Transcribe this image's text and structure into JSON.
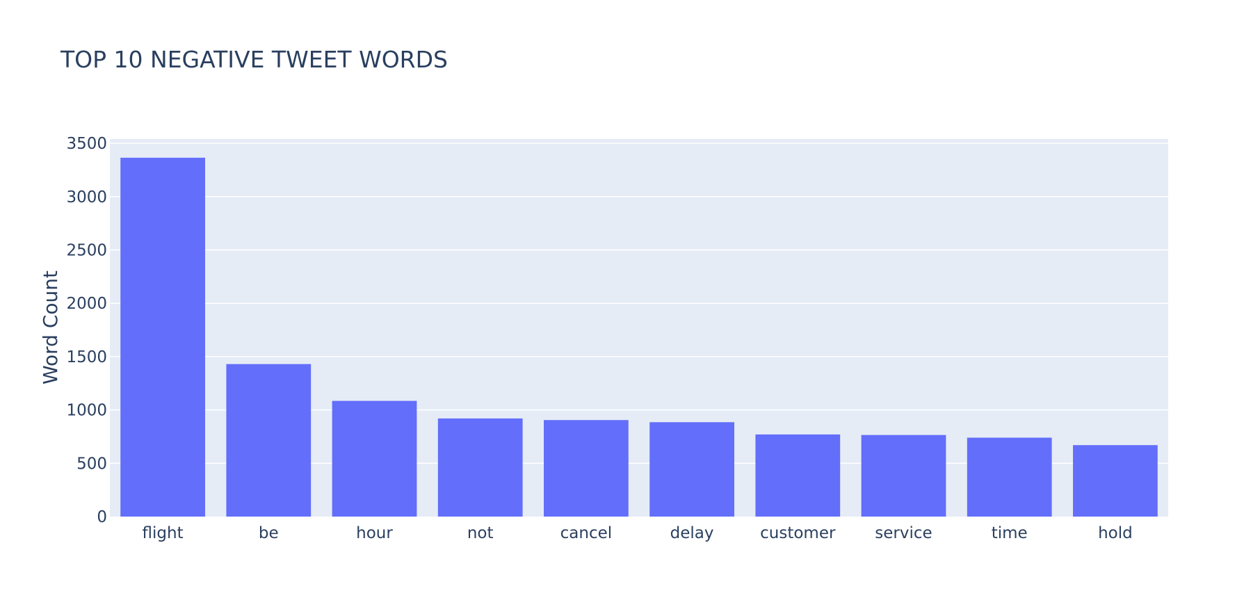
{
  "chart_data": {
    "type": "bar",
    "title": "TOP 10 NEGATIVE TWEET WORDS",
    "xlabel": "",
    "ylabel": "Word Count",
    "categories": [
      "flight",
      "be",
      "hour",
      "not",
      "cancel",
      "delay",
      "customer",
      "service",
      "time",
      "hold"
    ],
    "values": [
      3365,
      1430,
      1085,
      920,
      905,
      885,
      770,
      765,
      740,
      670
    ],
    "ylim": [
      0,
      3540
    ],
    "yticks": [
      0,
      500,
      1000,
      1500,
      2000,
      2500,
      3000,
      3500
    ],
    "grid": true,
    "legend": "none",
    "colors": {
      "bar": "#636efa",
      "plot_background": "#e5ecf6",
      "gridline": "#ffffff",
      "text": "#2a3f5f"
    }
  }
}
